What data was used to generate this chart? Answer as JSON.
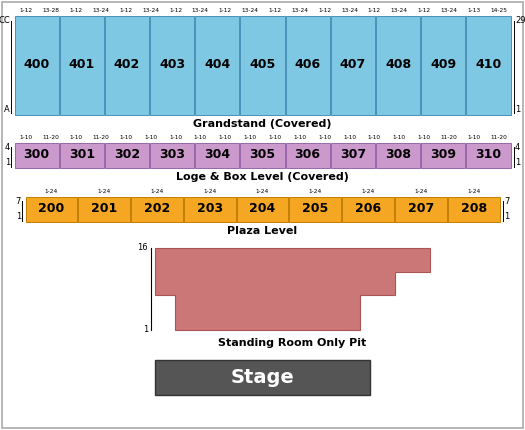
{
  "bg_color": "#ffffff",
  "border_color": "#aaaaaa",
  "grandstand_sections": [
    "400",
    "401",
    "402",
    "403",
    "404",
    "405",
    "406",
    "407",
    "408",
    "409",
    "410"
  ],
  "grandstand_color": "#7ec8e3",
  "grandstand_border": "#4a90b8",
  "grandstand_label": "Grandstand (Covered)",
  "grandstand_row_top": "CC",
  "grandstand_row_bottom": "A",
  "grandstand_col_right_top": "29",
  "grandstand_col_right_bot": "1",
  "grandstand_top_labels": [
    "1-12",
    "13-28",
    "1-12",
    "13-24",
    "1-12",
    "13-24",
    "1-12",
    "13-24",
    "1-12",
    "13-24",
    "1-12",
    "13-24",
    "1-12",
    "13-24",
    "1-12",
    "13-24",
    "1-12",
    "13-24",
    "1-13",
    "14-25"
  ],
  "loge_sections": [
    "300",
    "301",
    "302",
    "303",
    "304",
    "305",
    "306",
    "307",
    "308",
    "309",
    "310"
  ],
  "loge_color": "#cc99cc",
  "loge_border": "#9966aa",
  "loge_label": "Loge & Box Level (Covered)",
  "loge_row_left_top": "4",
  "loge_row_right_top": "4",
  "loge_row_left_bot": "1",
  "loge_row_right_bot": "1",
  "loge_top_labels": [
    "1-10",
    "11-20",
    "1-10",
    "11-20",
    "1-10",
    "1-10",
    "1-10",
    "1-10",
    "1-10",
    "1-10",
    "1-10",
    "1-10",
    "1-10",
    "1-10",
    "1-10",
    "1-10",
    "1-10",
    "11-20",
    "1-10",
    "11-20"
  ],
  "plaza_sections": [
    "200",
    "201",
    "202",
    "203",
    "204",
    "205",
    "206",
    "207",
    "208"
  ],
  "plaza_color": "#f5a623",
  "plaza_border": "#c47d00",
  "plaza_label": "Plaza Level",
  "plaza_row_left_top": "7",
  "plaza_row_right_top": "7",
  "plaza_row_left_bot": "1",
  "plaza_row_right_bot": "1",
  "plaza_top_labels": [
    "1-24",
    "1-24",
    "1-24",
    "1-24",
    "1-24",
    "1-24",
    "1-24",
    "1-24",
    "1-24"
  ],
  "pit_color": "#cc7777",
  "pit_border": "#aa5555",
  "pit_label": "Standing Room Only Pit",
  "pit_row_top": "16",
  "pit_row_bottom": "1",
  "stage_color": "#555555",
  "stage_label": "Stage",
  "stage_text_color": "#ffffff"
}
